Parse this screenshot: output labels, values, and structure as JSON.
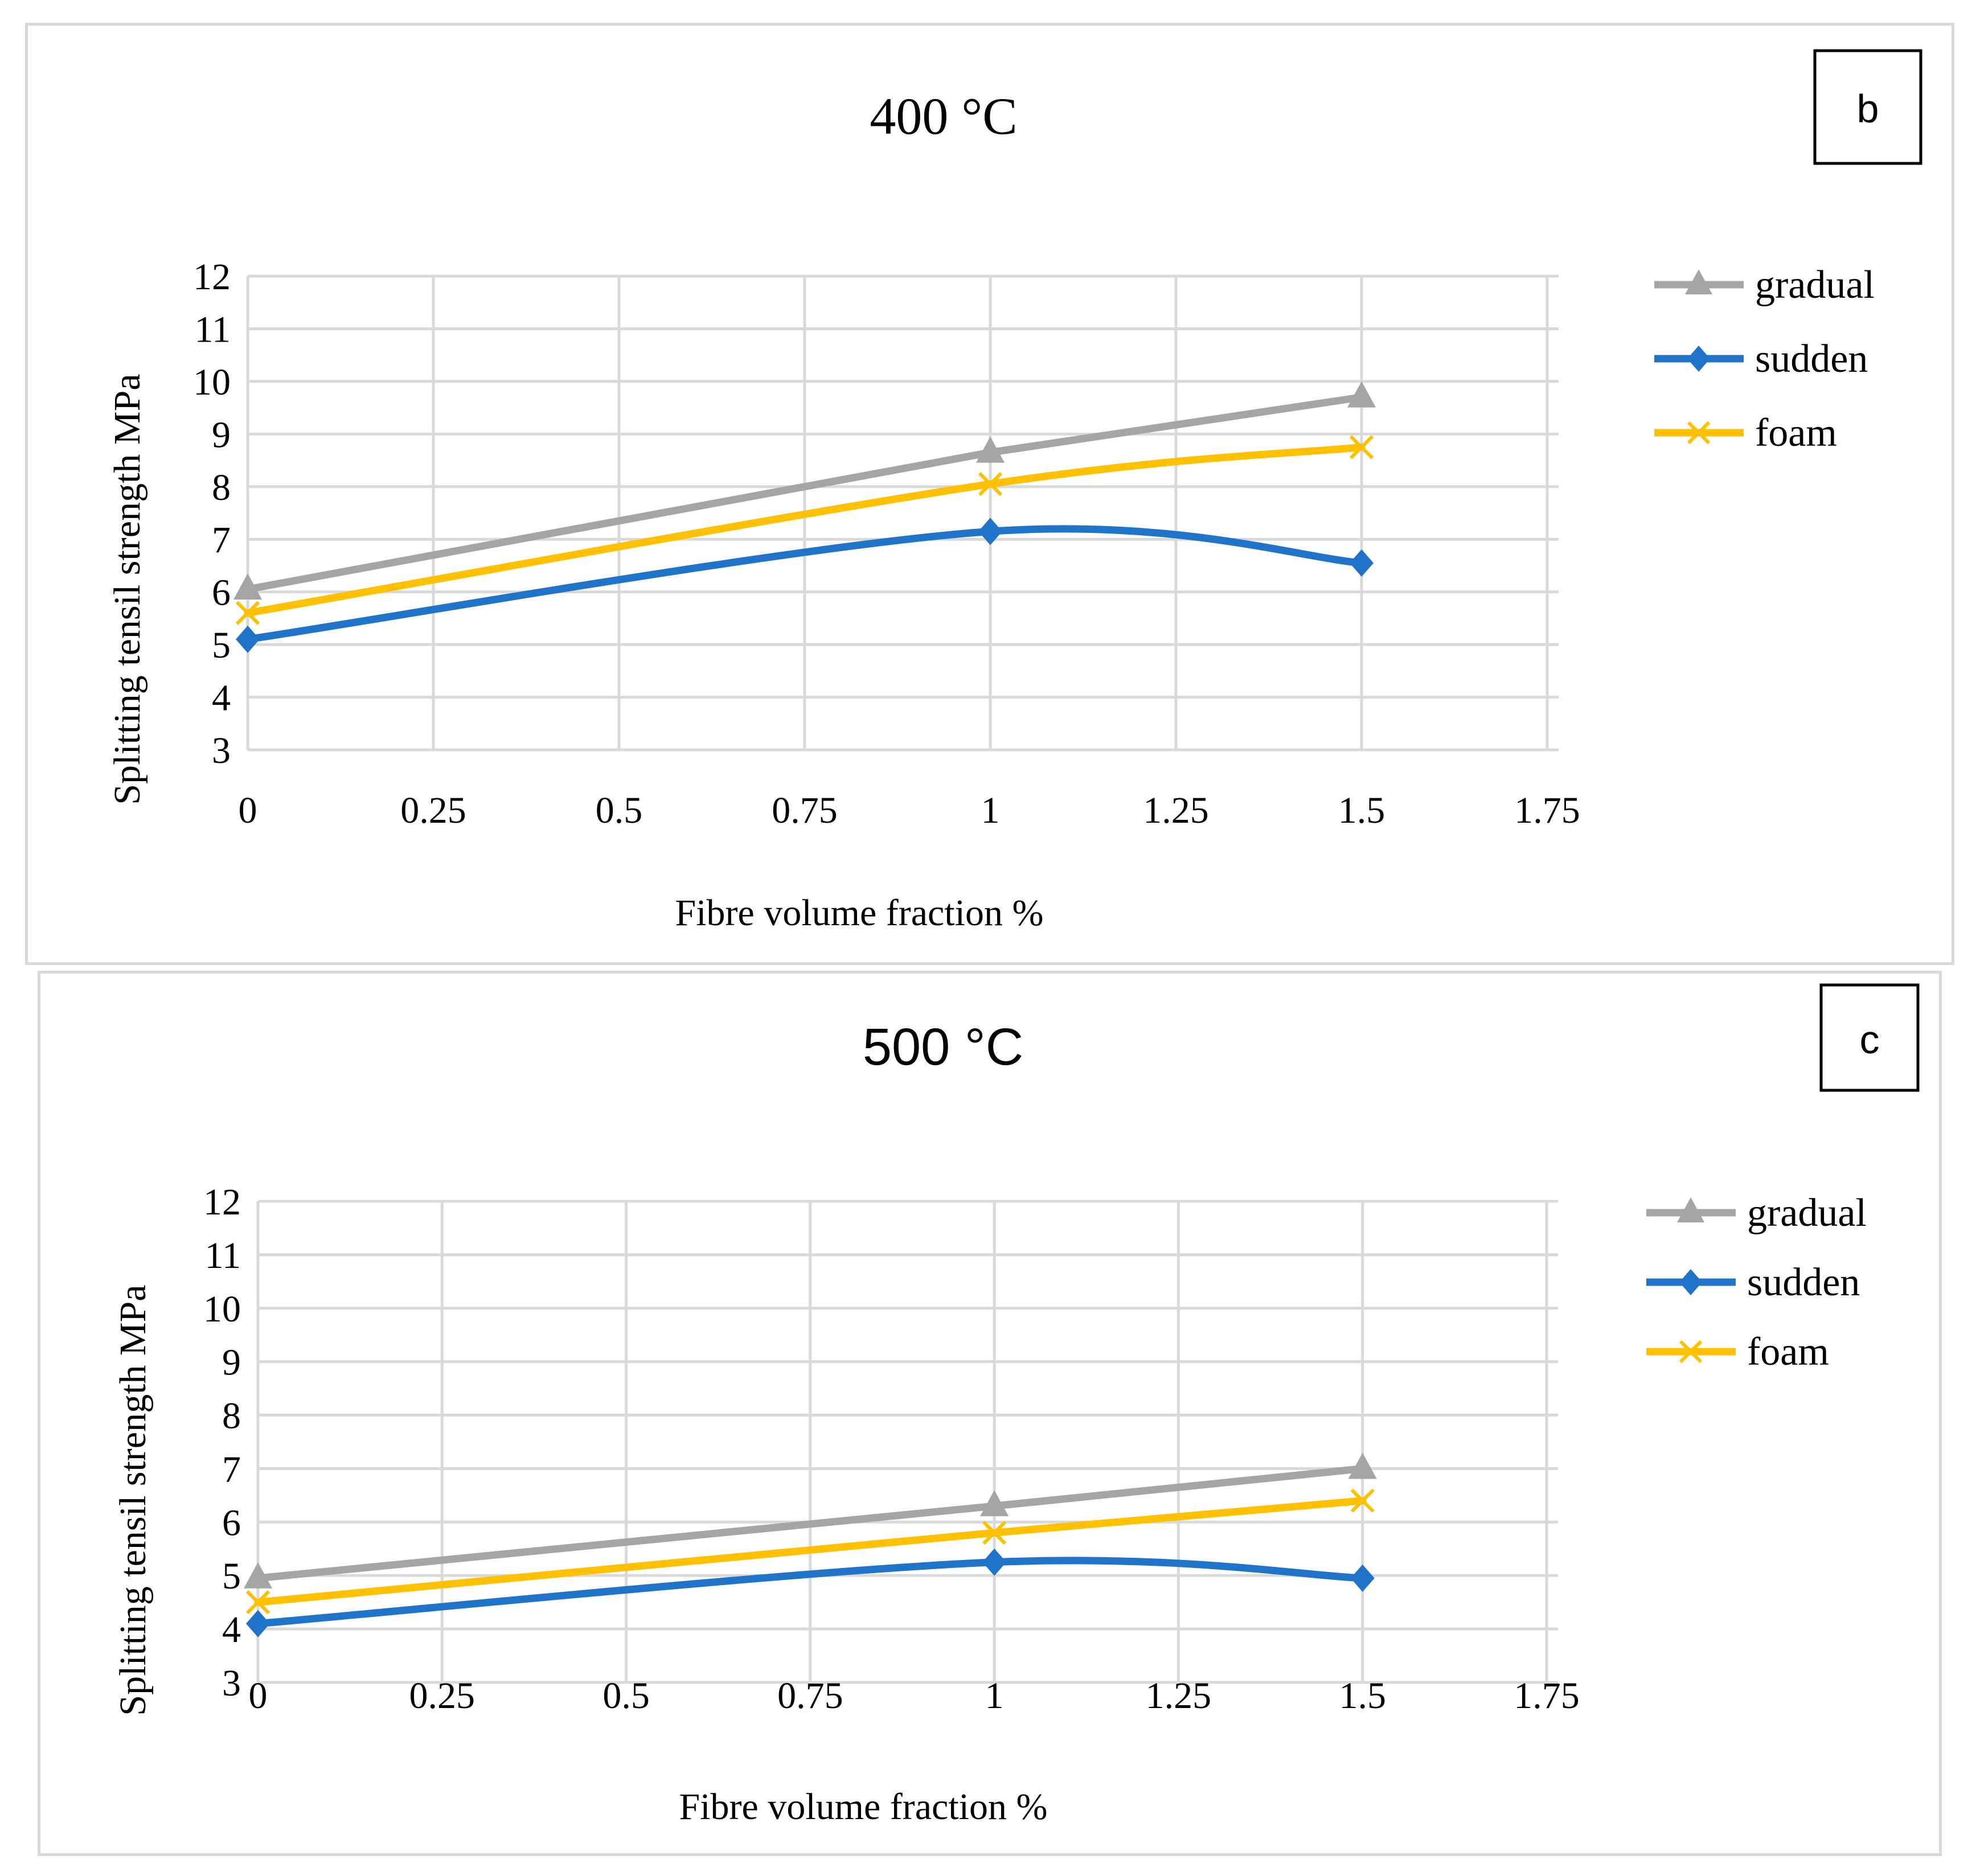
{
  "chart_data": [
    {
      "type": "line",
      "title": "400 °C",
      "badge": "b",
      "xlabel": "Fibre volume fraction %",
      "ylabel": "Splitting tensil strength MPa",
      "xlim": [
        0,
        1.75
      ],
      "ylim": [
        3,
        12
      ],
      "x_ticks": [
        "0",
        "0.25",
        "0.5",
        "0.75",
        "1",
        "1.25",
        "1.5",
        "1.75"
      ],
      "y_ticks": [
        "3",
        "4",
        "5",
        "6",
        "7",
        "8",
        "9",
        "10",
        "11",
        "12"
      ],
      "x": [
        0,
        1,
        1.5
      ],
      "series": [
        {
          "name": "gradual",
          "values": [
            6.05,
            8.65,
            9.7
          ],
          "color": "#a5a5a5",
          "marker": "triangle",
          "smooth": false
        },
        {
          "name": "sudden",
          "values": [
            5.1,
            7.15,
            6.55
          ],
          "color": "#1f73c9",
          "marker": "diamond",
          "smooth": true
        },
        {
          "name": "foam",
          "values": [
            5.6,
            8.05,
            8.75
          ],
          "color": "#ffc000",
          "marker": "x",
          "smooth": true
        }
      ],
      "legend": "right"
    },
    {
      "type": "line",
      "title": "500 °C",
      "badge": "c",
      "xlabel": "Fibre volume fraction %",
      "ylabel": "Splitting tensil strength MPa",
      "xlim": [
        0,
        1.75
      ],
      "ylim": [
        3,
        12
      ],
      "x_ticks": [
        "0",
        "0.25",
        "0.5",
        "0.75",
        "1",
        "1.25",
        "1.5",
        "1.75"
      ],
      "y_ticks": [
        "3",
        "4",
        "5",
        "6",
        "7",
        "8",
        "9",
        "10",
        "11",
        "12"
      ],
      "x": [
        0,
        1,
        1.5
      ],
      "series": [
        {
          "name": "gradual",
          "values": [
            4.95,
            6.3,
            7.0
          ],
          "color": "#a5a5a5",
          "marker": "triangle",
          "smooth": false
        },
        {
          "name": "sudden",
          "values": [
            4.1,
            5.25,
            4.95
          ],
          "color": "#1f73c9",
          "marker": "diamond",
          "smooth": true
        },
        {
          "name": "foam",
          "values": [
            4.5,
            5.8,
            6.4
          ],
          "color": "#ffc000",
          "marker": "x",
          "smooth": true
        }
      ],
      "legend": "right"
    }
  ]
}
